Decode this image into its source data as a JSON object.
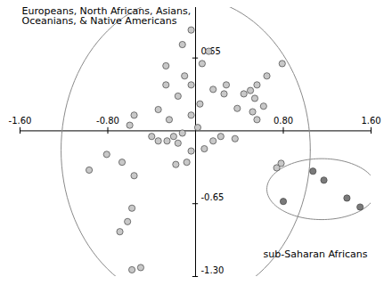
{
  "chart_data": {
    "type": "scatter",
    "xlim": [
      -1.6,
      1.6
    ],
    "ylim": [
      -1.3,
      1.1
    ],
    "xticks": [
      {
        "value": -1.6,
        "label": "-1.60"
      },
      {
        "value": -0.8,
        "label": "-0.80"
      },
      {
        "value": 0.8,
        "label": "0.80"
      },
      {
        "value": 1.6,
        "label": "1.60"
      }
    ],
    "yticks": [
      {
        "value": -1.3,
        "label": "-1.30"
      },
      {
        "value": -0.65,
        "label": "-0.65"
      },
      {
        "value": 0.65,
        "label": "0.65"
      }
    ],
    "grid": false,
    "marker": "circle",
    "series": [
      {
        "name": "Europeans, North Africans, Asians,\nOceanians, & Native Americans",
        "color": "#c8c8c8",
        "x": [
          -0.04,
          -0.12,
          0.12,
          0.06,
          -0.27,
          -0.1,
          -0.27,
          -0.04,
          0.16,
          -0.16,
          0.28,
          0.79,
          0.56,
          0.5,
          0.44,
          0.65,
          0.54,
          0.26,
          0.04,
          0.38,
          0.52,
          0.62,
          0.56,
          -0.56,
          -0.6,
          -0.34,
          -0.24,
          -0.04,
          0.02,
          -0.12,
          -0.2,
          -0.26,
          -0.34,
          -0.4,
          0.16,
          0.23,
          0.36,
          0.08,
          -0.04,
          -0.08,
          -0.18,
          -0.16,
          -0.97,
          -0.56,
          -0.67,
          -0.81,
          -0.58,
          -0.62,
          -0.69,
          -0.58,
          -0.5,
          0.74,
          0.78
        ],
        "y": [
          0.9,
          0.77,
          0.71,
          0.6,
          0.58,
          0.49,
          0.41,
          0.41,
          0.37,
          0.31,
          0.41,
          0.6,
          0.41,
          0.36,
          0.33,
          0.49,
          0.29,
          0.33,
          0.24,
          0.2,
          0.17,
          0.22,
          0.1,
          0.14,
          0.05,
          0.19,
          0.1,
          0.14,
          0.03,
          -0.02,
          -0.05,
          -0.09,
          -0.09,
          -0.05,
          -0.09,
          -0.05,
          -0.07,
          -0.16,
          -0.18,
          -0.28,
          -0.3,
          -0.11,
          -0.35,
          -0.4,
          -0.28,
          -0.21,
          -0.69,
          -0.81,
          -0.9,
          -1.24,
          -1.22,
          -0.33,
          -0.29
        ]
      },
      {
        "name": "sub-Saharan Africans",
        "color": "#7a7a7a",
        "x": [
          0.8,
          1.07,
          1.17,
          1.38,
          1.5
        ],
        "y": [
          -0.63,
          -0.36,
          -0.44,
          -0.6,
          -0.68
        ]
      }
    ]
  }
}
